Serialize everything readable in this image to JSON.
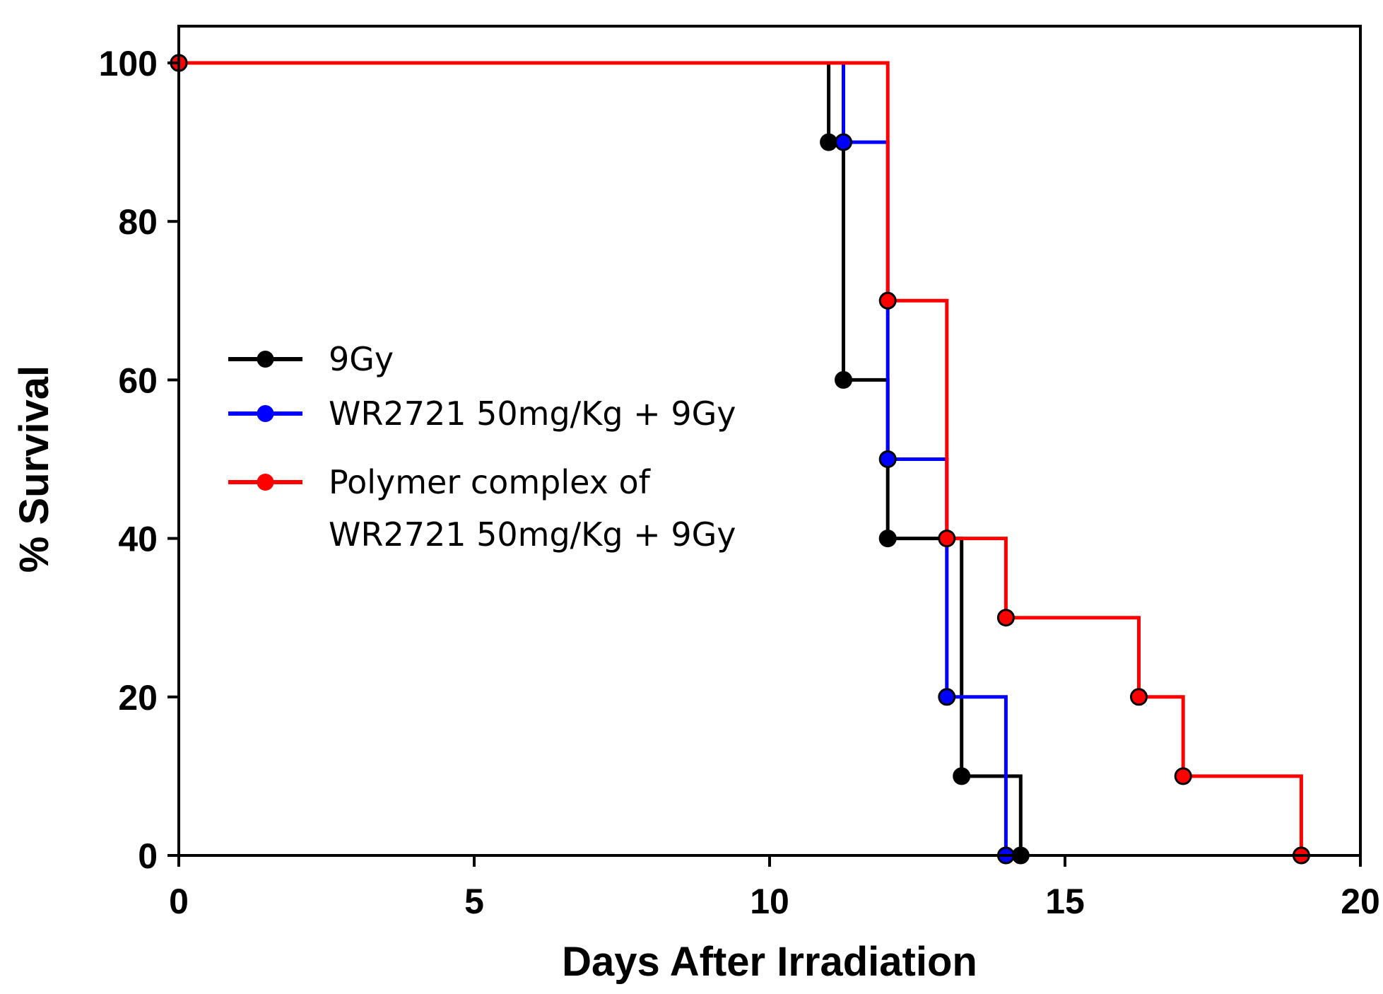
{
  "chart_data": {
    "type": "line",
    "step": true,
    "title": "",
    "xlabel": "Days After Irradiation",
    "ylabel": "% Survival",
    "xlim": [
      0,
      20
    ],
    "ylim": [
      0,
      100
    ],
    "xticks": [
      0,
      5,
      10,
      15,
      20
    ],
    "xtick_labels": [
      "0",
      "5",
      "10",
      "15",
      "20"
    ],
    "yticks": [
      0,
      20,
      40,
      60,
      80,
      100
    ],
    "ytick_labels": [
      "0",
      "20",
      "40",
      "60",
      "80",
      "100"
    ],
    "grid": false,
    "legend_position": "left-center",
    "series": [
      {
        "name": "9Gy",
        "label_lines": [
          "9Gy"
        ],
        "color": "#000000",
        "x": [
          0,
          11,
          11.25,
          12,
          13.25,
          14.25
        ],
        "y": [
          100,
          90,
          60,
          40,
          10,
          0
        ]
      },
      {
        "name": "WR2721 50mg/Kg + 9Gy",
        "label_lines": [
          "WR2721 50mg/Kg + 9Gy"
        ],
        "color": "#0000ff",
        "x": [
          0,
          11.25,
          12,
          13,
          14
        ],
        "y": [
          100,
          90,
          50,
          20,
          0
        ]
      },
      {
        "name": "Polymer complex of WR2721 50mg/Kg + 9Gy",
        "label_lines": [
          "Polymer complex of",
          "WR2721 50mg/Kg + 9Gy"
        ],
        "color": "#ff0000",
        "x": [
          0,
          12,
          13,
          14,
          16.25,
          17,
          19
        ],
        "y": [
          100,
          70,
          40,
          30,
          20,
          10,
          0
        ]
      }
    ]
  }
}
